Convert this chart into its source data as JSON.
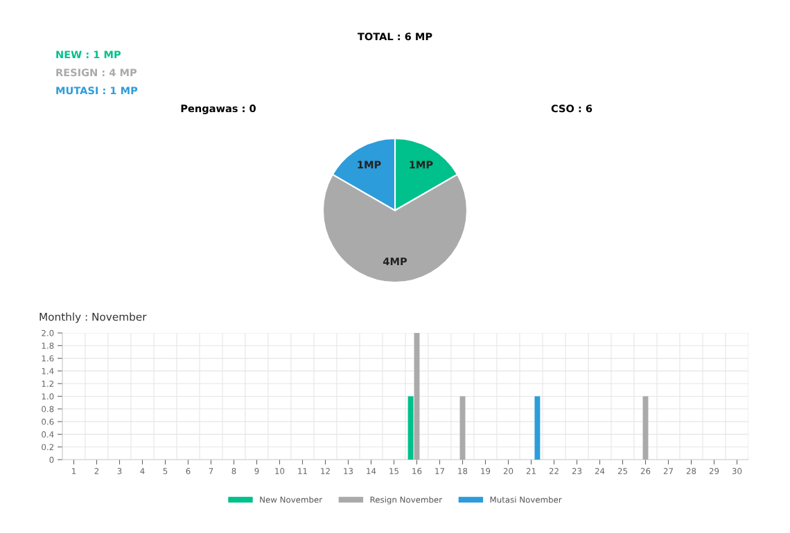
{
  "chart_data": [
    {
      "type": "pie",
      "title": "TOTAL : 6 MP",
      "categories": [
        null,
        null,
        null
      ],
      "values": [
        1,
        4,
        1
      ],
      "colors": [
        "#00c08b",
        "#aaaaaa",
        "#2d9cdb"
      ],
      "value_labels": [
        "1MP",
        "4MP",
        "1MP"
      ],
      "annotations": [
        "NEW : 1 MP",
        "RESIGN : 4 MP",
        "MUTASI : 1 MP",
        "Pengawas : 0",
        "CSO : 6"
      ]
    },
    {
      "type": "bar",
      "title": "Monthly : November",
      "categories": [
        "1",
        "2",
        "3",
        "4",
        "5",
        "6",
        "7",
        "8",
        "9",
        "10",
        "11",
        "12",
        "13",
        "14",
        "15",
        "16",
        "17",
        "18",
        "19",
        "20",
        "21",
        "22",
        "23",
        "24",
        "25",
        "26",
        "27",
        "28",
        "29",
        "30"
      ],
      "series": [
        {
          "name": "New November",
          "color": "#00c08b",
          "values": [
            0,
            0,
            0,
            0,
            0,
            0,
            0,
            0,
            0,
            0,
            0,
            0,
            0,
            0,
            0,
            1,
            0,
            0,
            0,
            0,
            0,
            0,
            0,
            0,
            0,
            0,
            0,
            0,
            0,
            0
          ]
        },
        {
          "name": "Resign November",
          "color": "#aaaaaa",
          "values": [
            0,
            0,
            0,
            0,
            0,
            0,
            0,
            0,
            0,
            0,
            0,
            0,
            0,
            0,
            0,
            2,
            0,
            1,
            0,
            0,
            0,
            0,
            0,
            0,
            0,
            1,
            0,
            0,
            0,
            0
          ]
        },
        {
          "name": "Mutasi November",
          "color": "#2d9cdb",
          "values": [
            0,
            0,
            0,
            0,
            0,
            0,
            0,
            0,
            0,
            0,
            0,
            0,
            0,
            0,
            0,
            0,
            0,
            0,
            0,
            0,
            1,
            0,
            0,
            0,
            0,
            0,
            0,
            0,
            0,
            0
          ]
        }
      ],
      "ylim": [
        0,
        2
      ],
      "yticks": [
        0,
        {
          "value": 0.2,
          "label": "0.2"
        },
        {
          "value": 0.4,
          "label": "0.4"
        },
        {
          "value": 0.6,
          "label": "0.6"
        },
        {
          "value": 0.8,
          "label": "0.8"
        },
        {
          "value": 1,
          "label": "1.0"
        },
        {
          "value": 1.2,
          "label": "1.2"
        },
        {
          "value": 1.4,
          "label": "1.4"
        },
        {
          "value": 1.6,
          "label": "1.6"
        },
        {
          "value": 1.8,
          "label": "1.8"
        },
        {
          "value": 2,
          "label": "2.0"
        }
      ],
      "grid": true,
      "legend": "bottom"
    }
  ]
}
